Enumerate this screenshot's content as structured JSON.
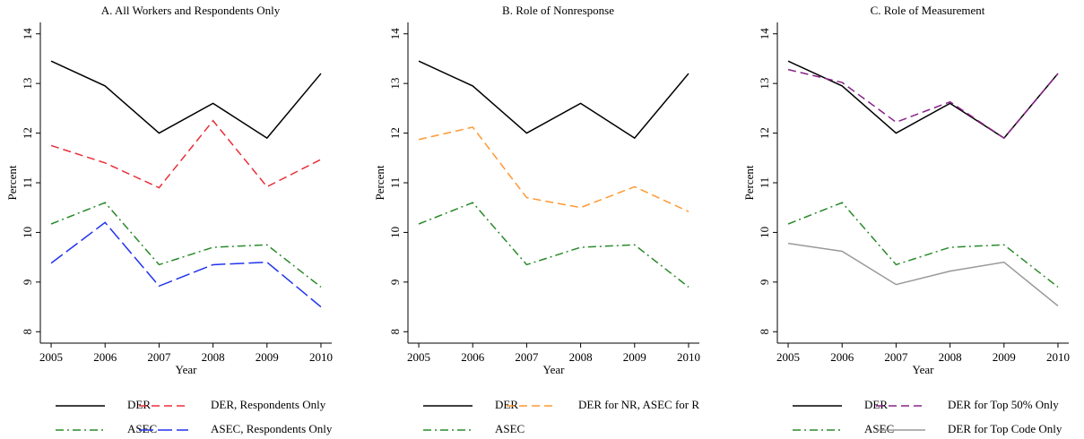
{
  "chart_data": [
    {
      "type": "line",
      "title": "A. All Workers and Respondents Only",
      "xlabel": "Year",
      "ylabel": "Percent",
      "x": [
        2005,
        2006,
        2007,
        2008,
        2009,
        2010
      ],
      "xlim": [
        2004.8,
        2010.2
      ],
      "xticks": [
        2005,
        2006,
        2007,
        2008,
        2009,
        2010
      ],
      "ylim": [
        7.77,
        14.23
      ],
      "yticks": [
        8,
        9,
        10,
        11,
        12,
        13,
        14
      ],
      "series": [
        {
          "name": "DER",
          "color": "#000000",
          "dash": "solid",
          "values": [
            13.45,
            12.95,
            12.0,
            12.6,
            11.9,
            13.2
          ]
        },
        {
          "name": "DER, Respondents Only",
          "color": "#e8303a",
          "dash": "dashed",
          "values": [
            11.75,
            11.4,
            10.9,
            12.25,
            10.92,
            11.47
          ]
        },
        {
          "name": "ASEC",
          "color": "#2a8a2a",
          "dash": "dashdot",
          "values": [
            10.17,
            10.6,
            9.35,
            9.7,
            9.75,
            8.9
          ]
        },
        {
          "name": "ASEC, Respondents Only",
          "color": "#2233ee",
          "dash": "longdash",
          "values": [
            9.38,
            10.2,
            8.92,
            9.35,
            9.4,
            8.5
          ]
        }
      ]
    },
    {
      "type": "line",
      "title": "B. Role of Nonresponse",
      "xlabel": "Year",
      "ylabel": "Percent",
      "x": [
        2005,
        2006,
        2007,
        2008,
        2009,
        2010
      ],
      "xlim": [
        2004.8,
        2010.2
      ],
      "xticks": [
        2005,
        2006,
        2007,
        2008,
        2009,
        2010
      ],
      "ylim": [
        7.77,
        14.23
      ],
      "yticks": [
        8,
        9,
        10,
        11,
        12,
        13,
        14
      ],
      "series": [
        {
          "name": "DER",
          "color": "#000000",
          "dash": "solid",
          "values": [
            13.45,
            12.95,
            12.0,
            12.6,
            11.9,
            13.2
          ]
        },
        {
          "name": "DER for NR, ASEC for R",
          "color": "#ff9933",
          "dash": "dashed",
          "values": [
            11.87,
            12.12,
            10.7,
            10.5,
            10.92,
            10.42
          ]
        },
        {
          "name": "ASEC",
          "color": "#2a8a2a",
          "dash": "dashdot",
          "values": [
            10.17,
            10.6,
            9.35,
            9.7,
            9.75,
            8.9
          ]
        }
      ]
    },
    {
      "type": "line",
      "title": "C. Role of Measurement",
      "xlabel": "Year",
      "ylabel": "Percent",
      "x": [
        2005,
        2006,
        2007,
        2008,
        2009,
        2010
      ],
      "xlim": [
        2004.8,
        2010.2
      ],
      "xticks": [
        2005,
        2006,
        2007,
        2008,
        2009,
        2010
      ],
      "ylim": [
        7.77,
        14.23
      ],
      "yticks": [
        8,
        9,
        10,
        11,
        12,
        13,
        14
      ],
      "series": [
        {
          "name": "DER",
          "color": "#000000",
          "dash": "solid",
          "values": [
            13.45,
            12.95,
            12.0,
            12.6,
            11.9,
            13.2
          ]
        },
        {
          "name": "DER for Top 50% Only",
          "color": "#882288",
          "dash": "dashed",
          "values": [
            13.28,
            13.02,
            12.22,
            12.63,
            11.9,
            13.2
          ]
        },
        {
          "name": "ASEC",
          "color": "#2a8a2a",
          "dash": "dashdot",
          "values": [
            10.17,
            10.6,
            9.35,
            9.7,
            9.75,
            8.9
          ]
        },
        {
          "name": "DER for Top Code Only",
          "color": "#999999",
          "dash": "solid",
          "values": [
            9.78,
            9.62,
            8.95,
            9.22,
            9.4,
            8.52
          ]
        }
      ]
    }
  ]
}
